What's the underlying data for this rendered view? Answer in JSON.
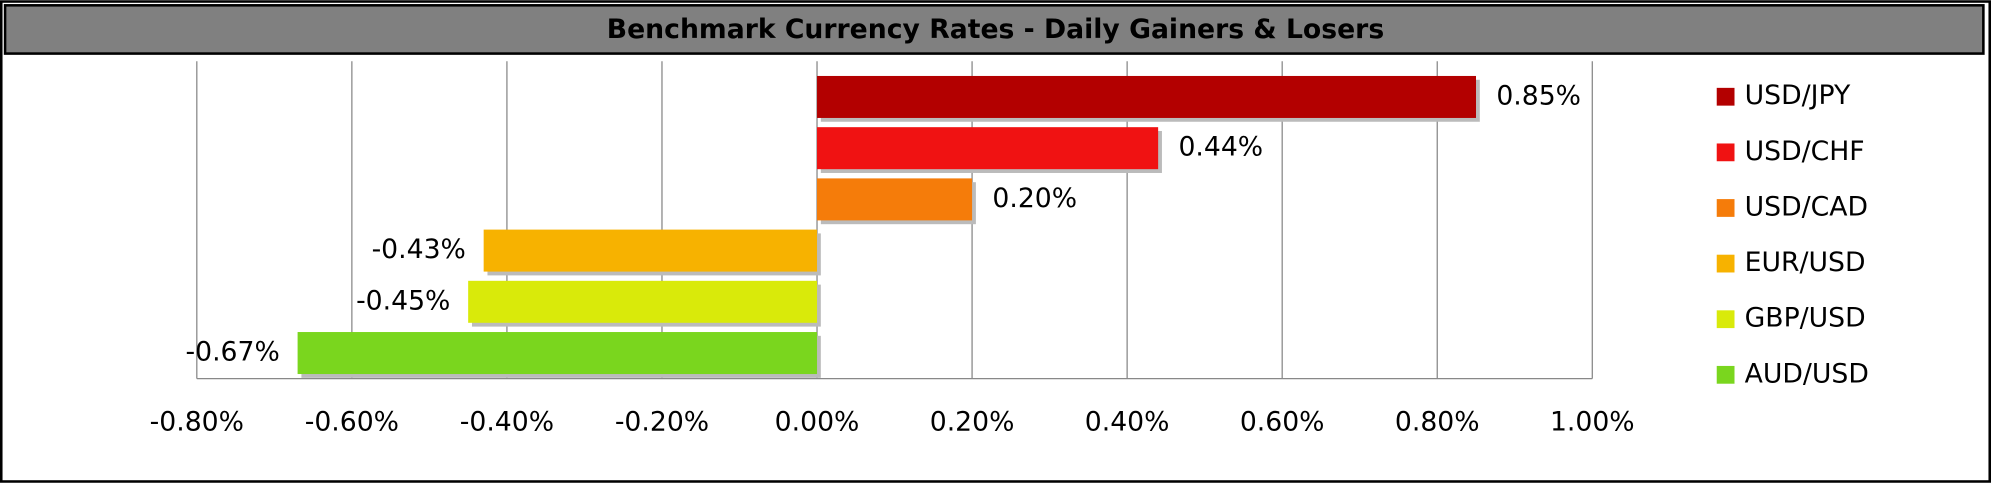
{
  "chart_data": {
    "type": "hbar",
    "title": "Benchmark Currency Rates - Daily Gainers & Losers",
    "series": [
      {
        "name": "USD/JPY",
        "color": "#b30000",
        "values": [
          0.85
        ],
        "value_labels": [
          "0.85%"
        ]
      },
      {
        "name": "USD/CHF",
        "color": "#f01212",
        "values": [
          0.44
        ],
        "value_labels": [
          "0.44%"
        ]
      },
      {
        "name": "USD/CAD",
        "color": "#f57c0a",
        "values": [
          0.2
        ],
        "value_labels": [
          "0.20%"
        ]
      },
      {
        "name": "EUR/USD",
        "color": "#f7b200",
        "values": [
          -0.43
        ],
        "value_labels": [
          "-0.43%"
        ]
      },
      {
        "name": "GBP/USD",
        "color": "#d9ea0a",
        "values": [
          -0.45
        ],
        "value_labels": [
          "-0.45%"
        ]
      },
      {
        "name": "AUD/USD",
        "color": "#7ad61e",
        "values": [
          -0.67
        ],
        "value_labels": [
          "-0.67%"
        ]
      }
    ],
    "xlim": [
      -0.8,
      1.0
    ],
    "xticks": [
      {
        "value": -0.8,
        "label": "-0.80%"
      },
      {
        "value": -0.6,
        "label": "-0.60%"
      },
      {
        "value": -0.4,
        "label": "-0.40%"
      },
      {
        "value": -0.2,
        "label": "-0.20%"
      },
      {
        "value": 0,
        "label": "0.00%"
      },
      {
        "value": 0.2,
        "label": "0.20%"
      },
      {
        "value": 0.4,
        "label": "0.40%"
      },
      {
        "value": 0.6,
        "label": "0.60%"
      },
      {
        "value": 0.8,
        "label": "0.80%"
      },
      {
        "value": 1.0,
        "label": "1.00%"
      }
    ],
    "grid": true,
    "legend": "right"
  }
}
